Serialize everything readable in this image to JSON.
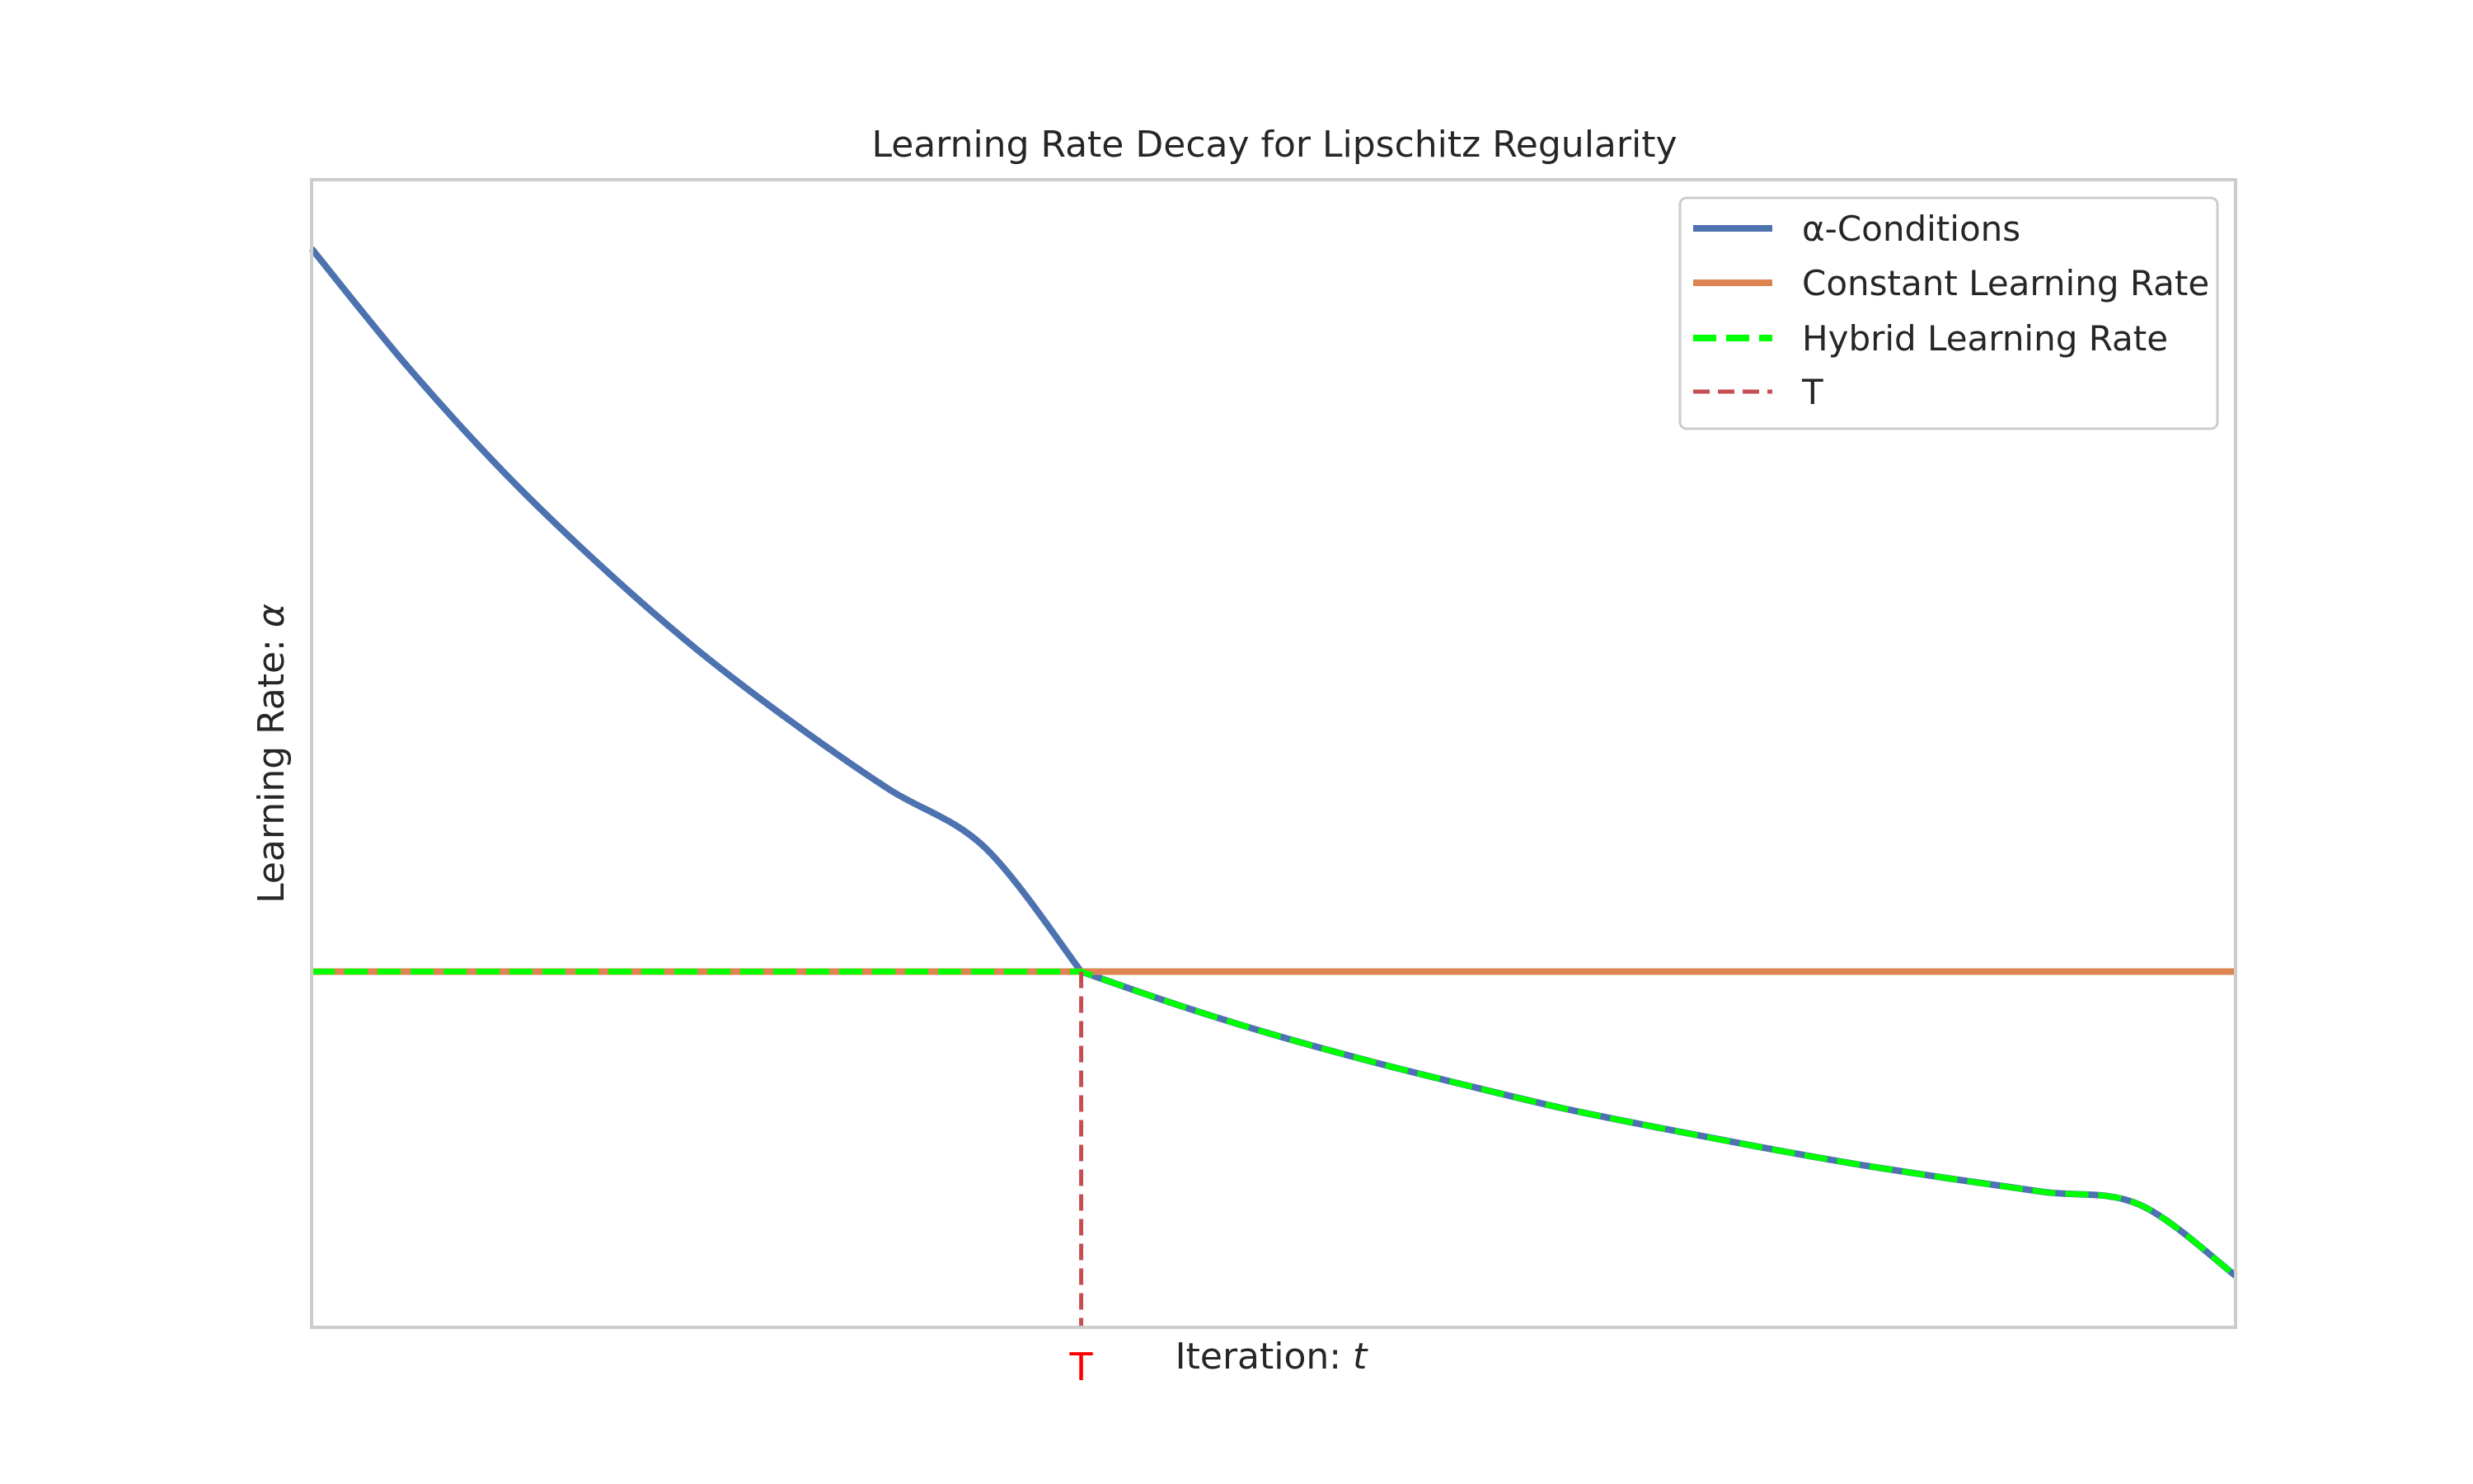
{
  "chart_data": {
    "type": "line",
    "title": "Learning Rate Decay for Lipschitz Regularity",
    "xlabel": "Iteration: ",
    "xlabel_var": "t",
    "ylabel": "Learning Rate: ",
    "ylabel_var": "α",
    "xlim": [
      0,
      1
    ],
    "ylim": [
      0,
      1
    ],
    "x_ticks": [
      {
        "value": 0.4,
        "label": "T"
      }
    ],
    "y_ticks": [],
    "grid": false,
    "legend_position": "top-right",
    "T": 0.4,
    "constant_value": 0.31,
    "series": [
      {
        "name": "α-Conditions",
        "color": "#4c72b0",
        "style": "solid",
        "x": [
          0,
          0.05,
          0.1,
          0.15,
          0.2,
          0.25,
          0.3,
          0.35,
          0.4,
          0.45,
          0.5,
          0.55,
          0.6,
          0.65,
          0.7,
          0.75,
          0.8,
          0.85,
          0.9,
          0.95,
          1.0
        ],
        "y": [
          0.94,
          0.837,
          0.745,
          0.664,
          0.591,
          0.527,
          0.469,
          0.418,
          0.31,
          0.281,
          0.255,
          0.232,
          0.211,
          0.191,
          0.174,
          0.158,
          0.143,
          0.13,
          0.118,
          0.107,
          0.045
        ]
      },
      {
        "name": "Constant Learning Rate",
        "color": "#dd8452",
        "style": "solid",
        "x": [
          0,
          1
        ],
        "y": [
          0.31,
          0.31
        ]
      },
      {
        "name": "Hybrid Learning Rate",
        "color": "#00ff00",
        "style": "dashed"
      },
      {
        "name": "T",
        "color": "#c44e52",
        "style": "dashed"
      }
    ],
    "tick_label_color": "#ff0000"
  }
}
